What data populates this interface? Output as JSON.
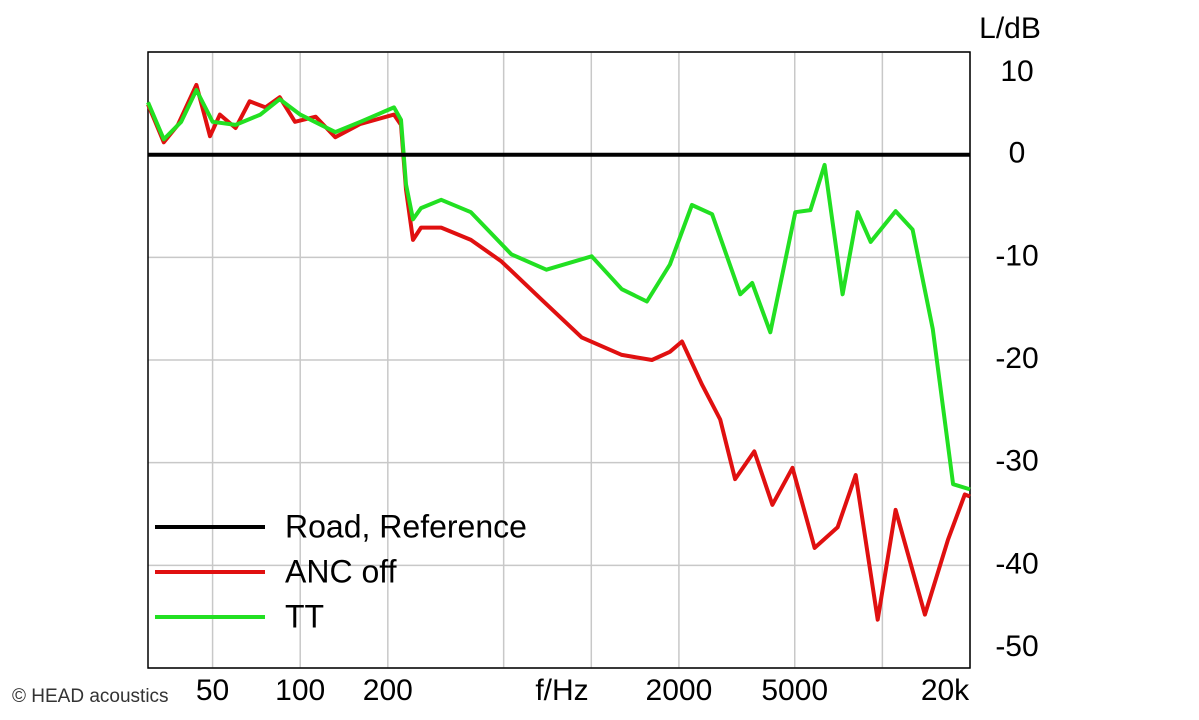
{
  "chart_data": {
    "type": "line",
    "y_label": "L/dB",
    "x_label": "f/Hz",
    "credit": "© HEAD acoustics",
    "xscale": "log",
    "xlim": [
      30,
      20000
    ],
    "ylim": [
      -50,
      10
    ],
    "xticks": [
      50,
      100,
      200,
      2000,
      5000,
      {
        "value": 20000,
        "label": "20k"
      }
    ],
    "xminor": [
      500,
      1000,
      10000
    ],
    "yticks": [
      10,
      0,
      -10,
      -20,
      -30,
      -40,
      -50
    ],
    "grid": true,
    "legend": "lower left",
    "series": [
      {
        "name": "Road, Reference",
        "color": "#000000",
        "x": [
          30,
          20000
        ],
        "values": [
          0,
          0
        ]
      },
      {
        "name": "ANC off",
        "color": "#e01010",
        "x": [
          30,
          34,
          38,
          44,
          49,
          53,
          60,
          67,
          76,
          85,
          96,
          113,
          132,
          161,
          210,
          222,
          231,
          244,
          260,
          305,
          386,
          491,
          674,
          927,
          1273,
          1615,
          1863,
          2050,
          2400,
          2772,
          3120,
          3630,
          4190,
          4910,
          5850,
          7020,
          8100,
          9640,
          11100,
          14000,
          16800,
          19200,
          20000
        ],
        "values": [
          4.9,
          1.2,
          2.9,
          6.8,
          1.8,
          3.9,
          2.6,
          5.2,
          4.6,
          5.6,
          3.2,
          3.7,
          1.7,
          3.0,
          3.9,
          2.9,
          -3.4,
          -8.3,
          -7.1,
          -7.1,
          -8.3,
          -10.4,
          -14.1,
          -17.8,
          -19.5,
          -20.0,
          -19.2,
          -18.2,
          -22.4,
          -25.8,
          -31.6,
          -28.9,
          -34.1,
          -30.5,
          -38.3,
          -36.3,
          -31.2,
          -45.3,
          -34.6,
          -44.8,
          -37.5,
          -33.1,
          -33.3
        ]
      },
      {
        "name": "TT",
        "color": "#22e022",
        "x": [
          30,
          34,
          39,
          44,
          50,
          60,
          73,
          85,
          100,
          132,
          161,
          210,
          222,
          231,
          244,
          260,
          305,
          386,
          531,
          701,
          1003,
          1273,
          1553,
          1863,
          2217,
          2600,
          3250,
          3570,
          4120,
          5020,
          5660,
          6330,
          7300,
          8220,
          9120,
          11100,
          12700,
          14900,
          17500,
          20000
        ],
        "values": [
          5.1,
          1.5,
          3.2,
          6.3,
          3.2,
          2.9,
          3.9,
          5.4,
          3.9,
          2.2,
          3.2,
          4.6,
          3.4,
          -2.9,
          -6.3,
          -5.2,
          -4.4,
          -5.6,
          -9.7,
          -11.2,
          -9.9,
          -13.1,
          -14.3,
          -10.7,
          -4.9,
          -5.8,
          -13.6,
          -12.5,
          -17.3,
          -5.6,
          -5.4,
          -1.0,
          -13.6,
          -5.6,
          -8.5,
          -5.5,
          -7.3,
          -17.0,
          -32.1,
          -32.6
        ]
      }
    ]
  }
}
